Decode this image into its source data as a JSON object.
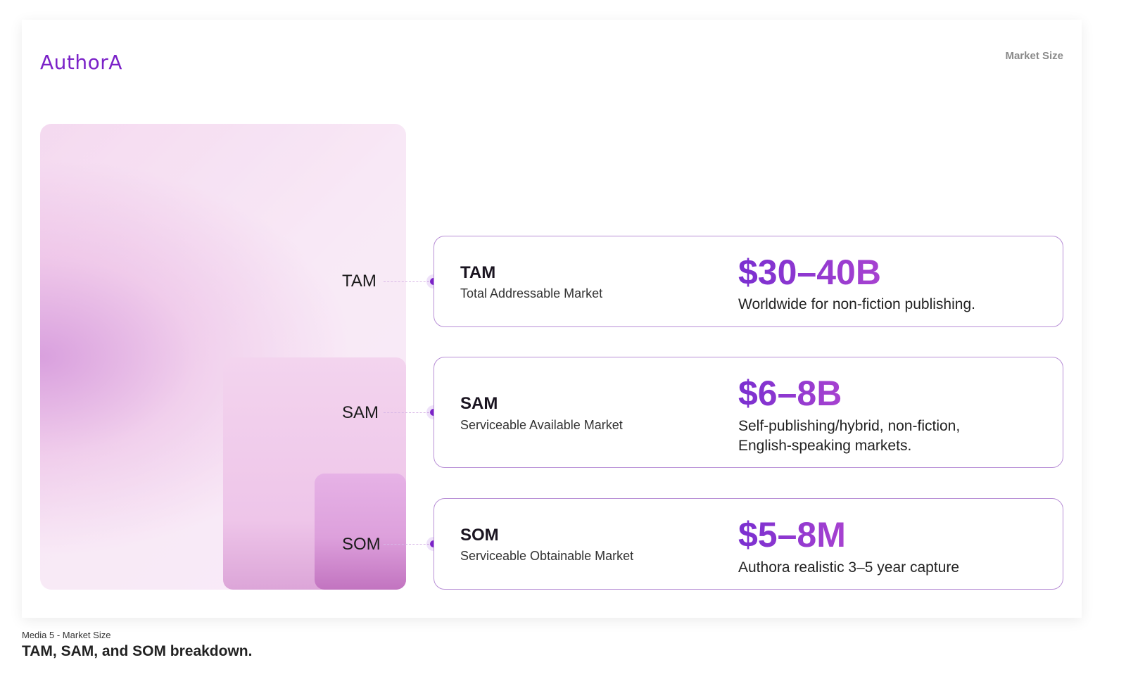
{
  "header": {
    "logo": "AuthorA",
    "section": "Market Size"
  },
  "markets": [
    {
      "abbr": "TAM",
      "full": "Total Addressable Market",
      "value": "$30–40B",
      "desc": "Worldwide for non-fiction publishing."
    },
    {
      "abbr": "SAM",
      "full": "Serviceable Available Market",
      "value": "$6–8B",
      "desc": "Self-publishing/hybrid, non-fiction, English-speaking markets."
    },
    {
      "abbr": "SOM",
      "full": "Serviceable Obtainable Market",
      "value": "$5–8M",
      "desc": "Authora realistic 3–5 year capture"
    }
  ],
  "caption": {
    "label": "Media 5 - Market Size",
    "title": "TAM, SAM, and SOM breakdown."
  },
  "colors": {
    "accent": "#7b22c8",
    "border": "#b88fd6"
  }
}
